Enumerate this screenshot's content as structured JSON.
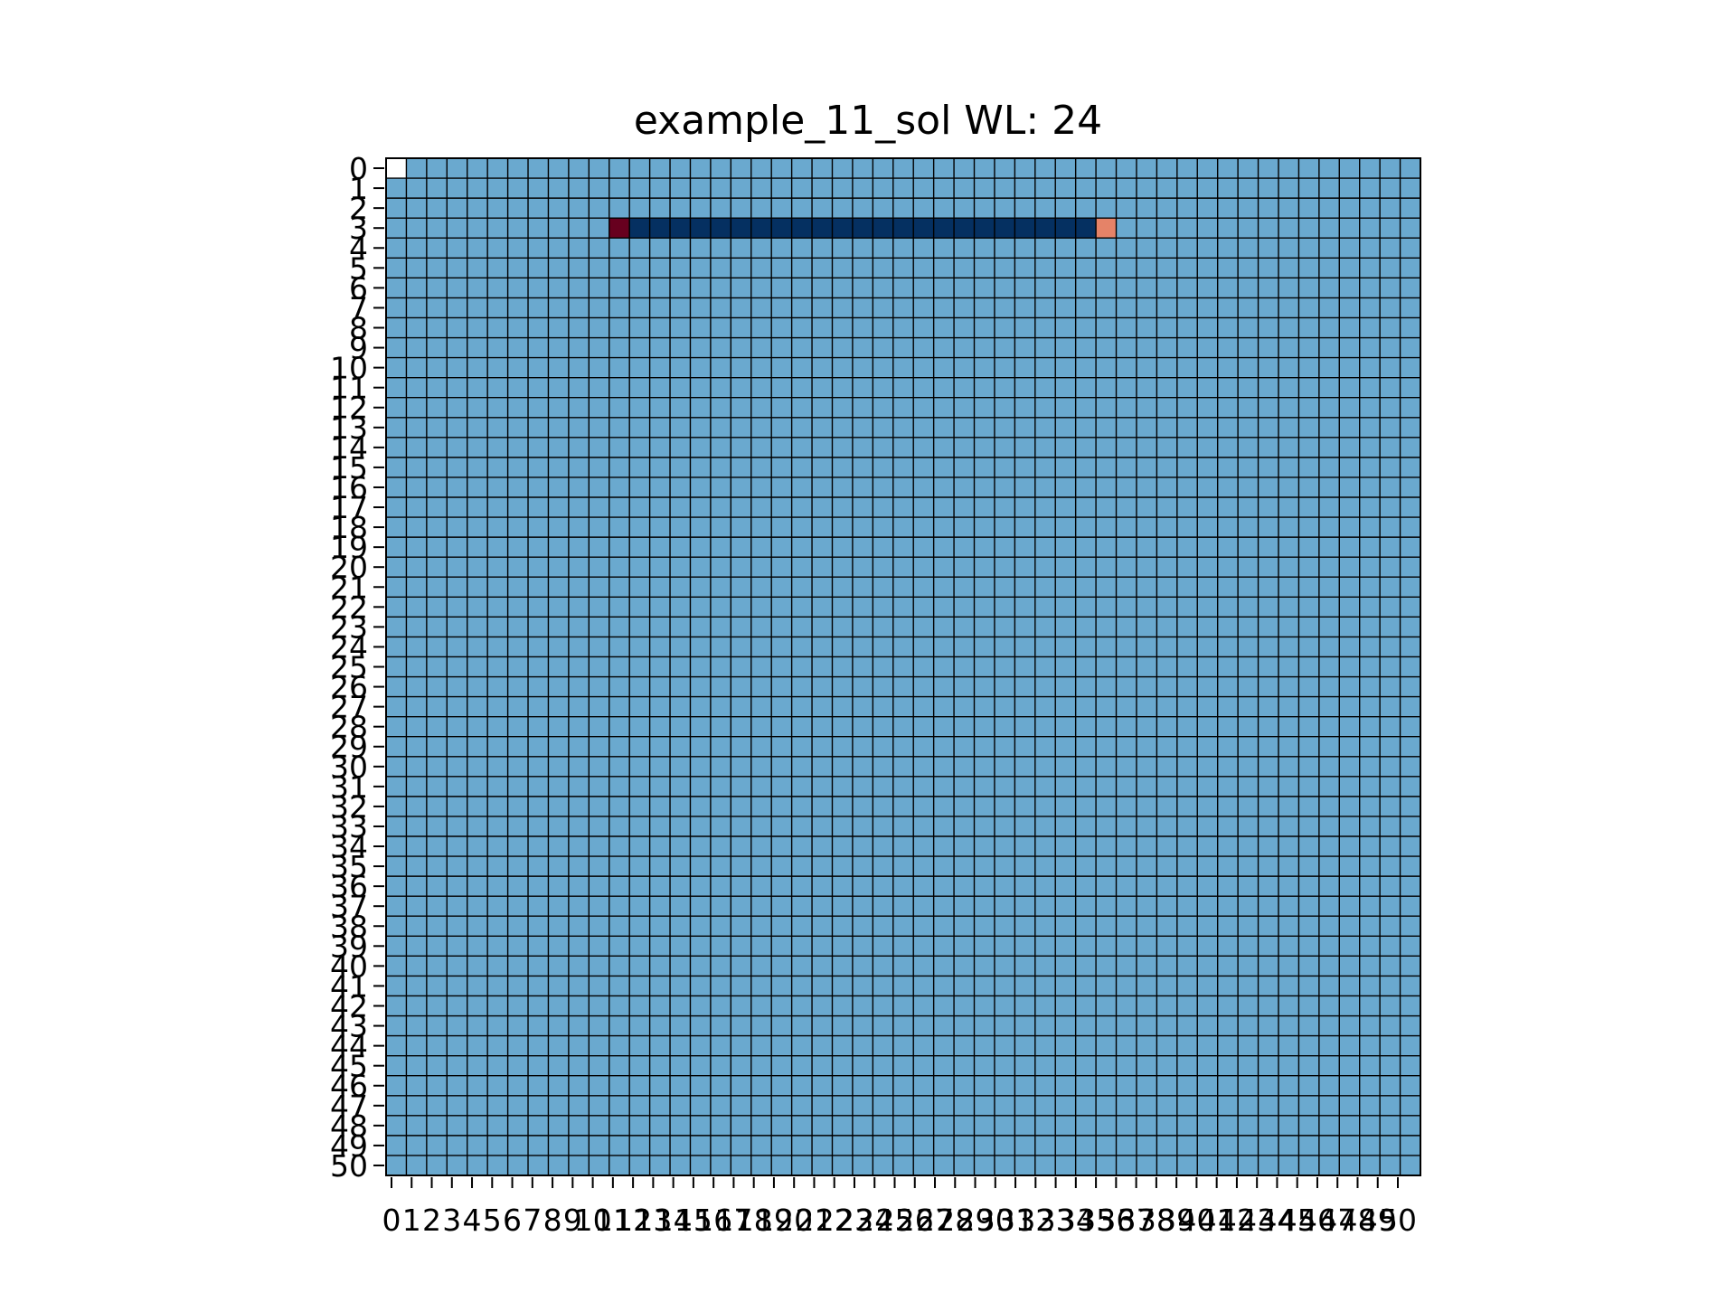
{
  "chart_data": {
    "type": "heatmap",
    "title": "example_11_sol WL: 24",
    "xlabel": "",
    "ylabel": "",
    "rows": 51,
    "cols": 51,
    "xlim": [
      0,
      50
    ],
    "ylim": [
      0,
      50
    ],
    "x_tick_labels": [
      "0",
      "1",
      "2",
      "3",
      "4",
      "5",
      "6",
      "7",
      "8",
      "9",
      "10",
      "11",
      "12",
      "13",
      "14",
      "15",
      "16",
      "17",
      "18",
      "19",
      "20",
      "21",
      "22",
      "23",
      "24",
      "25",
      "26",
      "27",
      "28",
      "29",
      "30",
      "31",
      "32",
      "33",
      "34",
      "35",
      "36",
      "37",
      "38",
      "39",
      "40",
      "41",
      "42",
      "43",
      "44",
      "45",
      "46",
      "47",
      "48",
      "49",
      "50"
    ],
    "y_tick_labels": [
      "0",
      "1",
      "2",
      "3",
      "4",
      "5",
      "6",
      "7",
      "8",
      "9",
      "10",
      "11",
      "12",
      "13",
      "14",
      "15",
      "16",
      "17",
      "18",
      "19",
      "20",
      "21",
      "22",
      "23",
      "24",
      "25",
      "26",
      "27",
      "28",
      "29",
      "30",
      "31",
      "32",
      "33",
      "34",
      "35",
      "36",
      "37",
      "38",
      "39",
      "40",
      "41",
      "42",
      "43",
      "44",
      "45",
      "46",
      "47",
      "48",
      "49",
      "50"
    ],
    "grid": true,
    "background_color": "#6aa9cf",
    "special_cells": [
      {
        "row": 0,
        "col": 0,
        "color": "#ffffff"
      },
      {
        "row": 3,
        "col": 11,
        "color": "#67001f"
      },
      {
        "row": 3,
        "col": 12,
        "color": "#053061"
      },
      {
        "row": 3,
        "col": 13,
        "color": "#053061"
      },
      {
        "row": 3,
        "col": 14,
        "color": "#053061"
      },
      {
        "row": 3,
        "col": 15,
        "color": "#053061"
      },
      {
        "row": 3,
        "col": 16,
        "color": "#053061"
      },
      {
        "row": 3,
        "col": 17,
        "color": "#053061"
      },
      {
        "row": 3,
        "col": 18,
        "color": "#053061"
      },
      {
        "row": 3,
        "col": 19,
        "color": "#053061"
      },
      {
        "row": 3,
        "col": 20,
        "color": "#053061"
      },
      {
        "row": 3,
        "col": 21,
        "color": "#053061"
      },
      {
        "row": 3,
        "col": 22,
        "color": "#053061"
      },
      {
        "row": 3,
        "col": 23,
        "color": "#053061"
      },
      {
        "row": 3,
        "col": 24,
        "color": "#053061"
      },
      {
        "row": 3,
        "col": 25,
        "color": "#053061"
      },
      {
        "row": 3,
        "col": 26,
        "color": "#053061"
      },
      {
        "row": 3,
        "col": 27,
        "color": "#053061"
      },
      {
        "row": 3,
        "col": 28,
        "color": "#053061"
      },
      {
        "row": 3,
        "col": 29,
        "color": "#053061"
      },
      {
        "row": 3,
        "col": 30,
        "color": "#053061"
      },
      {
        "row": 3,
        "col": 31,
        "color": "#053061"
      },
      {
        "row": 3,
        "col": 32,
        "color": "#053061"
      },
      {
        "row": 3,
        "col": 33,
        "color": "#053061"
      },
      {
        "row": 3,
        "col": 34,
        "color": "#053061"
      },
      {
        "row": 3,
        "col": 35,
        "color": "#e58368"
      }
    ]
  }
}
